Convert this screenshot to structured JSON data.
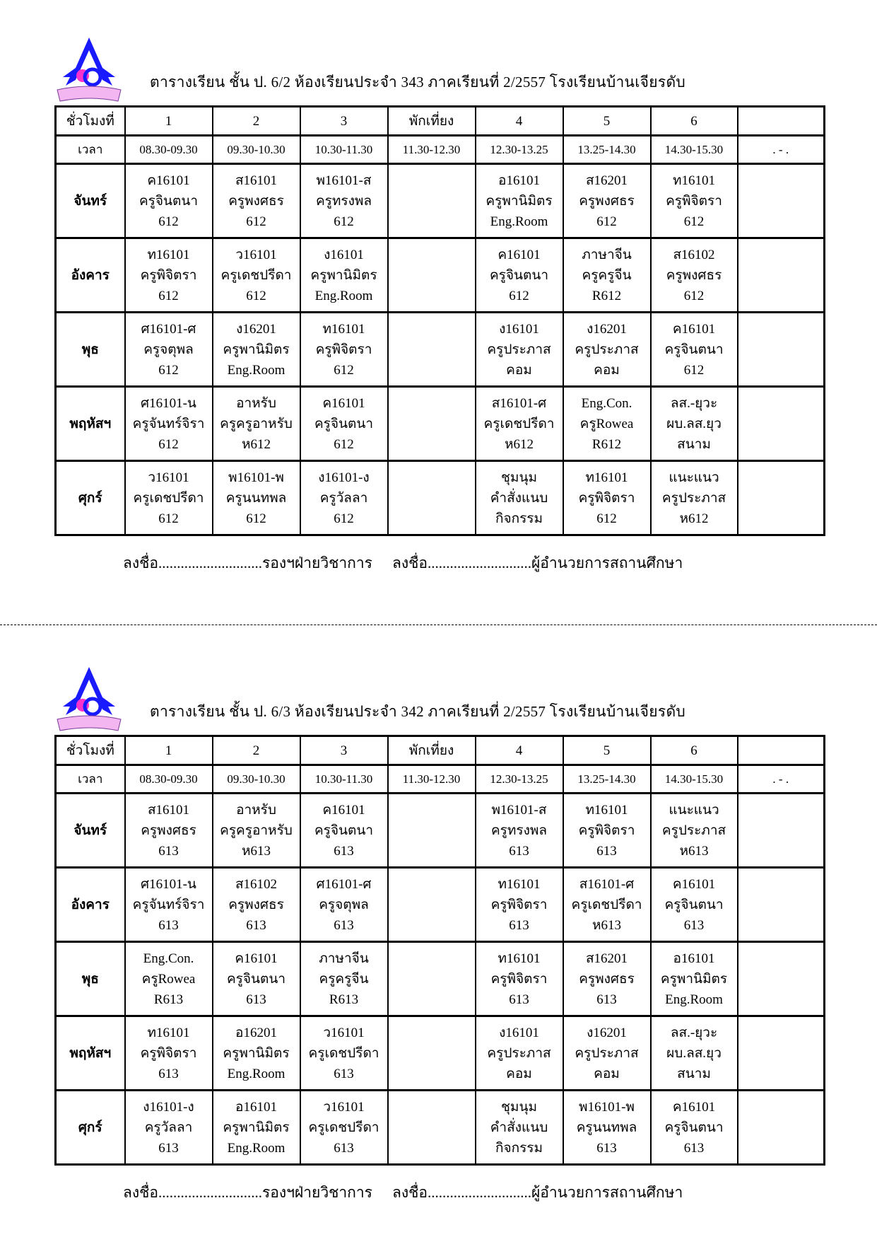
{
  "logo": {
    "ribbon_text": "โรงเรียนบ้านเจียรดับ",
    "colors": {
      "roof": "#1a1aff",
      "emblem": "#ff33cc",
      "ribbon": "#f3b6f0"
    }
  },
  "header": {
    "label": "ชั่วโมงที่",
    "periods": [
      "1",
      "2",
      "3",
      "พักเที่ยง",
      "4",
      "5",
      "6",
      ""
    ]
  },
  "time_row": {
    "label": "เวลา",
    "times": [
      "08.30-09.30",
      "09.30-10.30",
      "10.30-11.30",
      "11.30-12.30",
      "12.30-13.25",
      "13.25-14.30",
      "14.30-15.30",
      ". - ."
    ]
  },
  "footer": {
    "sign1": "ลงชื่อ............................รองฯฝ่ายวิชาการ",
    "sign2": "ลงชื่อ............................ผู้อำนวยการสถานศึกษา"
  },
  "timetables": [
    {
      "title": "ตารางเรียน ชั้น ป. 6/2 ห้องเรียนประจำ 343 ภาคเรียนที่ 2/2557 โรงเรียนบ้านเจียรดับ",
      "days": [
        {
          "name": "จันทร์",
          "cells": [
            [
              "ค16101",
              "ครูจินตนา",
              "612"
            ],
            [
              "ส16101",
              "ครูพงศธร",
              "612"
            ],
            [
              "พ16101-ส",
              "ครูทรงพล",
              "612"
            ],
            [
              "อ16101",
              "ครูพานิมิตร",
              "Eng.Room"
            ],
            [
              "ส16201",
              "ครูพงศธร",
              "612"
            ],
            [
              "ท16101",
              "ครูพิจิตรา",
              "612"
            ]
          ]
        },
        {
          "name": "อังคาร",
          "cells": [
            [
              "ท16101",
              "ครูพิจิตรา",
              "612"
            ],
            [
              "ว16101",
              "ครูเดชปรีดา",
              "612"
            ],
            [
              "ง16101",
              "ครูพานิมิตร",
              "Eng.Room"
            ],
            [
              "ค16101",
              "ครูจินตนา",
              "612"
            ],
            [
              "ภาษาจีน",
              "ครูครูจีน",
              "R612"
            ],
            [
              "ส16102",
              "ครูพงศธร",
              "612"
            ]
          ]
        },
        {
          "name": "พุธ",
          "cells": [
            [
              "ศ16101-ศ",
              "ครูจตุพล",
              "612"
            ],
            [
              "ง16201",
              "ครูพานิมิตร",
              "Eng.Room"
            ],
            [
              "ท16101",
              "ครูพิจิตรา",
              "612"
            ],
            [
              "ง16101",
              "ครูประภาส",
              "คอม"
            ],
            [
              "ง16201",
              "ครูประภาส",
              "คอม"
            ],
            [
              "ค16101",
              "ครูจินตนา",
              "612"
            ]
          ]
        },
        {
          "name": "พฤหัสฯ",
          "cells": [
            [
              "ศ16101-น",
              "ครูจันทร์จิรา",
              "612"
            ],
            [
              "อาหรับ",
              "ครูครูอาหรับ",
              "ห612"
            ],
            [
              "ค16101",
              "ครูจินตนา",
              "612"
            ],
            [
              "ส16101-ศ",
              "ครูเดชปรีดา",
              "ห612"
            ],
            [
              "Eng.Con.",
              "ครูRowea",
              "R612"
            ],
            [
              "ลส.-ยุวะ",
              "ผบ.ลส.ยุว",
              "สนาม"
            ]
          ]
        },
        {
          "name": "ศุกร์",
          "cells": [
            [
              "ว16101",
              "ครูเดชปรีดา",
              "612"
            ],
            [
              "พ16101-พ",
              "ครูนนทพล",
              "612"
            ],
            [
              "ง16101-ง",
              "ครูวัลลา",
              "612"
            ],
            [
              "ชุมนุม",
              "คำสั่งแนบ",
              "กิจกรรม"
            ],
            [
              "ท16101",
              "ครูพิจิตรา",
              "612"
            ],
            [
              "แนะแนว",
              "ครูประภาส",
              "ห612"
            ]
          ]
        }
      ]
    },
    {
      "title": "ตารางเรียน ชั้น ป. 6/3 ห้องเรียนประจำ 342 ภาคเรียนที่ 2/2557 โรงเรียนบ้านเจียรดับ",
      "days": [
        {
          "name": "จันทร์",
          "cells": [
            [
              "ส16101",
              "ครูพงศธร",
              "613"
            ],
            [
              "อาหรับ",
              "ครูครูอาหรับ",
              "ห613"
            ],
            [
              "ค16101",
              "ครูจินตนา",
              "613"
            ],
            [
              "พ16101-ส",
              "ครูทรงพล",
              "613"
            ],
            [
              "ท16101",
              "ครูพิจิตรา",
              "613"
            ],
            [
              "แนะแนว",
              "ครูประภาส",
              "ห613"
            ]
          ]
        },
        {
          "name": "อังคาร",
          "cells": [
            [
              "ศ16101-น",
              "ครูจันทร์จิรา",
              "613"
            ],
            [
              "ส16102",
              "ครูพงศธร",
              "613"
            ],
            [
              "ศ16101-ศ",
              "ครูจตุพล",
              "613"
            ],
            [
              "ท16101",
              "ครูพิจิตรา",
              "613"
            ],
            [
              "ส16101-ศ",
              "ครูเดชปรีดา",
              "ห613"
            ],
            [
              "ค16101",
              "ครูจินตนา",
              "613"
            ]
          ]
        },
        {
          "name": "พุธ",
          "cells": [
            [
              "Eng.Con.",
              "ครูRowea",
              "R613"
            ],
            [
              "ค16101",
              "ครูจินตนา",
              "613"
            ],
            [
              "ภาษาจีน",
              "ครูครูจีน",
              "R613"
            ],
            [
              "ท16101",
              "ครูพิจิตรา",
              "613"
            ],
            [
              "ส16201",
              "ครูพงศธร",
              "613"
            ],
            [
              "อ16101",
              "ครูพานิมิตร",
              "Eng.Room"
            ]
          ]
        },
        {
          "name": "พฤหัสฯ",
          "cells": [
            [
              "ท16101",
              "ครูพิจิตรา",
              "613"
            ],
            [
              "อ16201",
              "ครูพานิมิตร",
              "Eng.Room"
            ],
            [
              "ว16101",
              "ครูเดชปรีดา",
              "613"
            ],
            [
              "ง16101",
              "ครูประภาส",
              "คอม"
            ],
            [
              "ง16201",
              "ครูประภาส",
              "คอม"
            ],
            [
              "ลส.-ยุวะ",
              "ผบ.ลส.ยุว",
              "สนาม"
            ]
          ]
        },
        {
          "name": "ศุกร์",
          "cells": [
            [
              "ง16101-ง",
              "ครูวัลลา",
              "613"
            ],
            [
              "อ16101",
              "ครูพานิมิตร",
              "Eng.Room"
            ],
            [
              "ว16101",
              "ครูเดชปรีดา",
              "613"
            ],
            [
              "ชุมนุม",
              "คำสั่งแนบ",
              "กิจกรรม"
            ],
            [
              "พ16101-พ",
              "ครูนนทพล",
              "613"
            ],
            [
              "ค16101",
              "ครูจินตนา",
              "613"
            ]
          ]
        }
      ]
    }
  ]
}
